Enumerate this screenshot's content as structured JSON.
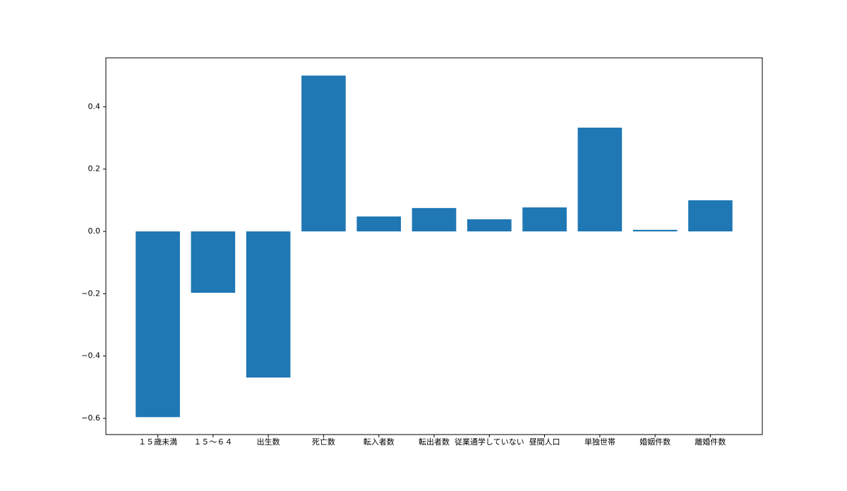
{
  "chart_data": {
    "type": "bar",
    "categories": [
      "１５歳未満",
      "１５〜６４",
      "出生数",
      "死亡数",
      "転入者数",
      "転出者数",
      "従業通学していない",
      "昼間人口",
      "単独世帯",
      "婚姻件数",
      "離婚件数"
    ],
    "values": [
      -0.596,
      -0.197,
      -0.469,
      0.5,
      0.048,
      0.075,
      0.039,
      0.077,
      0.333,
      0.005,
      0.1
    ],
    "color": "#1f77b4",
    "ylim": [
      -0.652,
      0.557
    ],
    "yticks": [
      {
        "value": -0.6,
        "label": "−0.6"
      },
      {
        "value": -0.4,
        "label": "−0.4"
      },
      {
        "value": -0.2,
        "label": "−0.2"
      },
      {
        "value": 0,
        "label": "0.0"
      },
      0.2,
      0.4
    ],
    "grid": false
  }
}
